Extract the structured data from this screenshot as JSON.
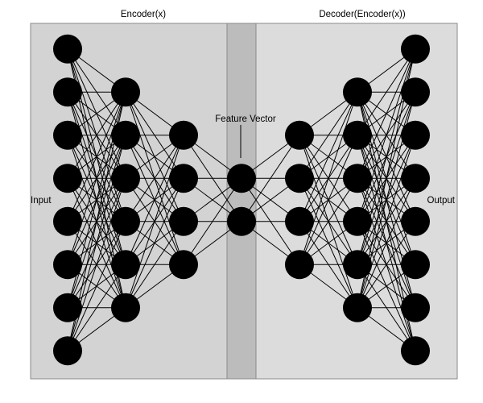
{
  "labels": {
    "encoder": "Encoder(x)",
    "decoder": "Decoder(Encoder(x))",
    "feature_vector": "Feature Vector",
    "input": "Input",
    "output": "Output"
  },
  "network": {
    "layer_sizes": [
      8,
      6,
      4,
      2,
      4,
      6,
      8
    ]
  },
  "colors": {
    "encoder_panel": "#d3d3d3",
    "decoder_panel": "#dcdcdc",
    "bottleneck_panel": "#bcbcbc",
    "panel_border": "#8a8a8a",
    "node": "#000000",
    "edge": "#000000"
  }
}
